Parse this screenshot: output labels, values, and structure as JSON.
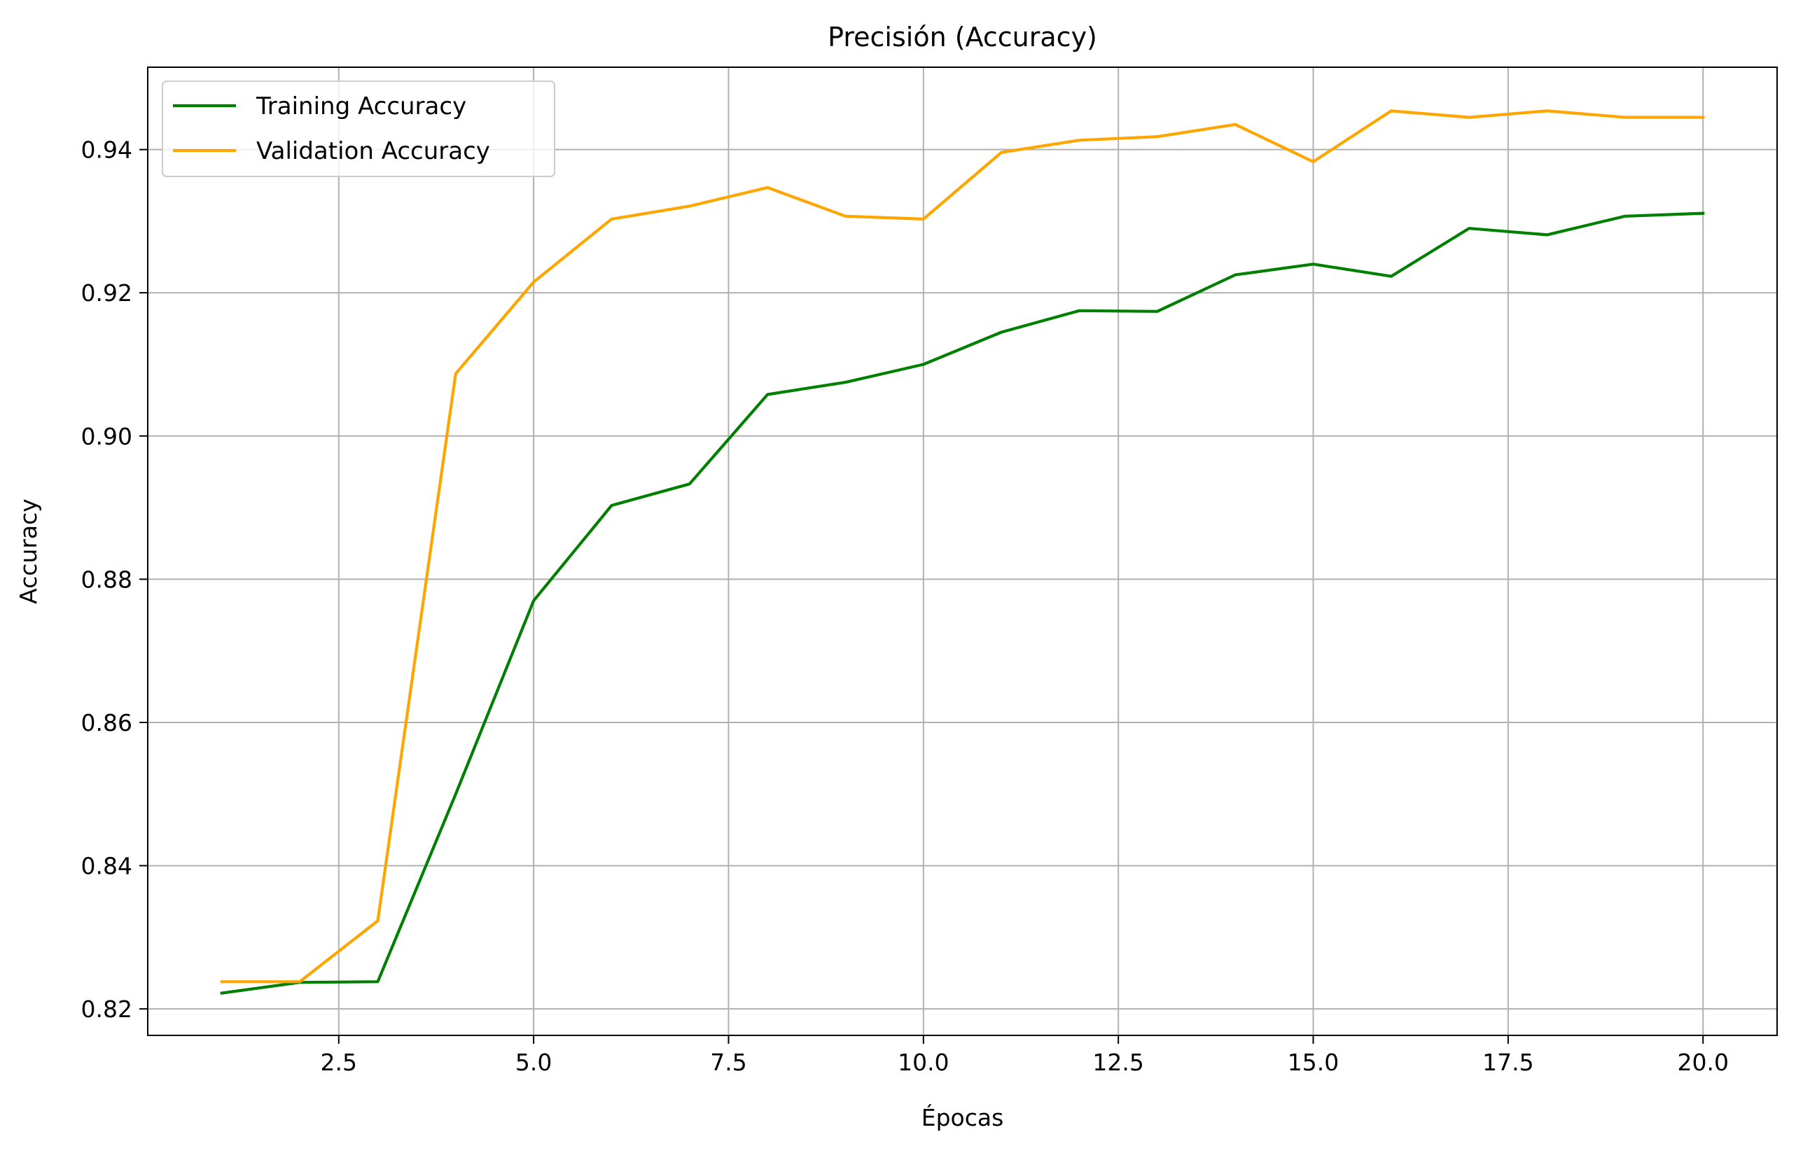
{
  "chart_data": {
    "type": "line",
    "title": "Precisión (Accuracy)",
    "xlabel": "Épocas",
    "ylabel": "Accuracy",
    "xlim": [
      0.05,
      20.95
    ],
    "ylim": [
      0.8163,
      0.9515
    ],
    "xticks": [
      2.5,
      5.0,
      7.5,
      10.0,
      12.5,
      15.0,
      17.5,
      20.0
    ],
    "xtick_labels": [
      "2.5",
      "5.0",
      "7.5",
      "10.0",
      "12.5",
      "15.0",
      "17.5",
      "20.0"
    ],
    "yticks": [
      0.82,
      0.84,
      0.86,
      0.88,
      0.9,
      0.92,
      0.94
    ],
    "ytick_labels": [
      "0.82",
      "0.84",
      "0.86",
      "0.88",
      "0.90",
      "0.92",
      "0.94"
    ],
    "grid": true,
    "legend_position": "upper-left",
    "x": [
      1,
      2,
      3,
      4,
      5,
      6,
      7,
      8,
      9,
      10,
      11,
      12,
      13,
      14,
      15,
      16,
      17,
      18,
      19,
      20
    ],
    "series": [
      {
        "name": "Training Accuracy",
        "color": "#008000",
        "values": [
          0.8222,
          0.8237,
          0.8238,
          0.85,
          0.877,
          0.8903,
          0.8933,
          0.9058,
          0.9075,
          0.91,
          0.9145,
          0.9175,
          0.9174,
          0.9225,
          0.924,
          0.9223,
          0.929,
          0.9281,
          0.9307,
          0.9311
        ]
      },
      {
        "name": "Validation Accuracy",
        "color": "#FFA500",
        "values": [
          0.8238,
          0.8238,
          0.8323,
          0.9087,
          0.9215,
          0.9303,
          0.9321,
          0.9347,
          0.9307,
          0.9303,
          0.9396,
          0.9413,
          0.9418,
          0.9435,
          0.9383,
          0.9454,
          0.9445,
          0.9454,
          0.9445,
          0.9445
        ]
      }
    ]
  }
}
